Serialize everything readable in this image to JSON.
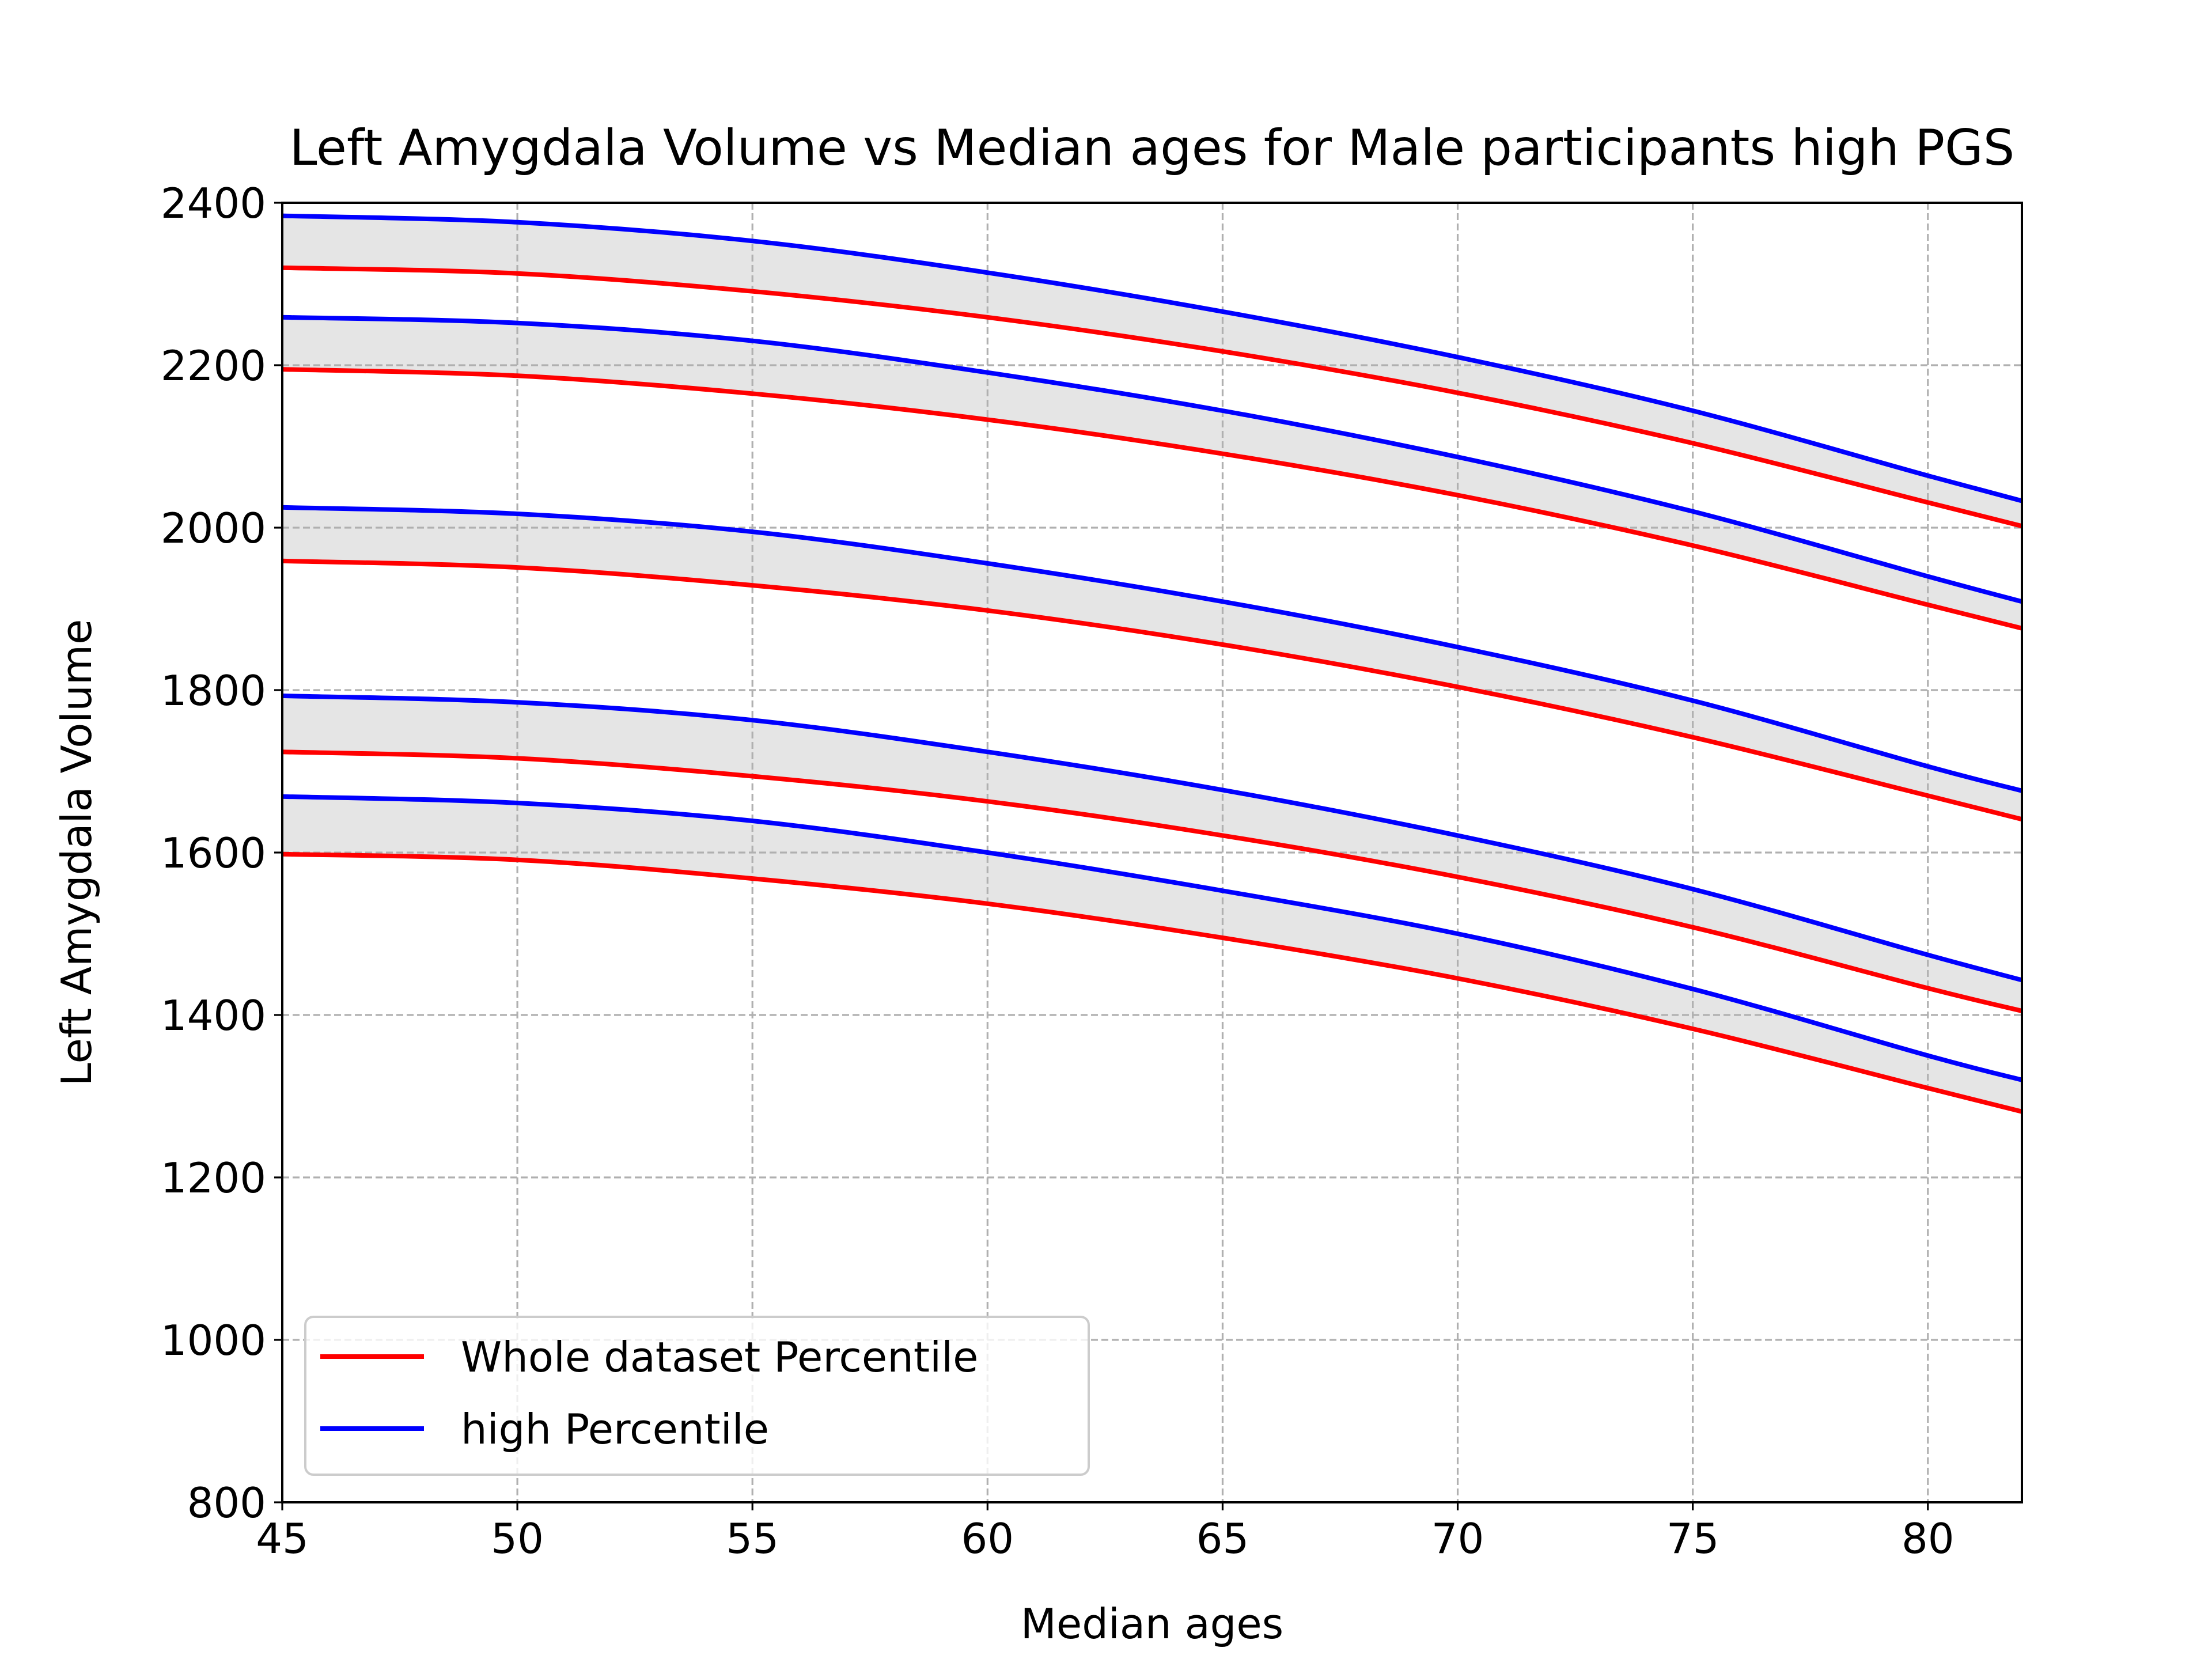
{
  "chart_data": {
    "type": "line",
    "title": "Left Amygdala Volume vs Median ages for Male participants high PGS",
    "xlabel": "Median ages",
    "ylabel": "Left Amygdala Volume",
    "xlim": [
      45,
      82
    ],
    "ylim": [
      800,
      2400
    ],
    "xticks": [
      45,
      50,
      55,
      60,
      65,
      70,
      75,
      80
    ],
    "yticks": [
      800,
      1000,
      1200,
      1400,
      1600,
      1800,
      2000,
      2200,
      2400
    ],
    "grid": true,
    "legend_position": "lower-left",
    "x": [
      45,
      50,
      55,
      60,
      65,
      70,
      75,
      80,
      82
    ],
    "series": [
      {
        "name": "Whole dataset Percentile",
        "color": "#ff0000",
        "lines": [
          [
            1598,
            1591,
            1568,
            1537,
            1495,
            1445,
            1383,
            1310,
            1281
          ],
          [
            1724,
            1716,
            1694,
            1663,
            1621,
            1570,
            1508,
            1433,
            1405
          ],
          [
            1959,
            1951,
            1929,
            1898,
            1856,
            1804,
            1742,
            1670,
            1641
          ],
          [
            2195,
            2187,
            2165,
            2133,
            2091,
            2040,
            1978,
            1905,
            1876
          ],
          [
            2320,
            2313,
            2291,
            2259,
            2217,
            2166,
            2104,
            2031,
            2002
          ]
        ]
      },
      {
        "name": "high Percentile",
        "color": "#0000ff",
        "lines": [
          [
            1669,
            1661,
            1639,
            1600,
            1553,
            1500,
            1432,
            1350,
            1320
          ],
          [
            1793,
            1785,
            1763,
            1724,
            1677,
            1621,
            1555,
            1474,
            1443
          ],
          [
            2025,
            2017,
            1995,
            1956,
            1909,
            1853,
            1787,
            1706,
            1676
          ],
          [
            2259,
            2252,
            2230,
            2191,
            2144,
            2087,
            2020,
            1940,
            1909
          ],
          [
            2384,
            2376,
            2353,
            2314,
            2266,
            2210,
            2144,
            2064,
            2033
          ]
        ]
      }
    ],
    "band_fill_color": "#e5e5e5"
  }
}
